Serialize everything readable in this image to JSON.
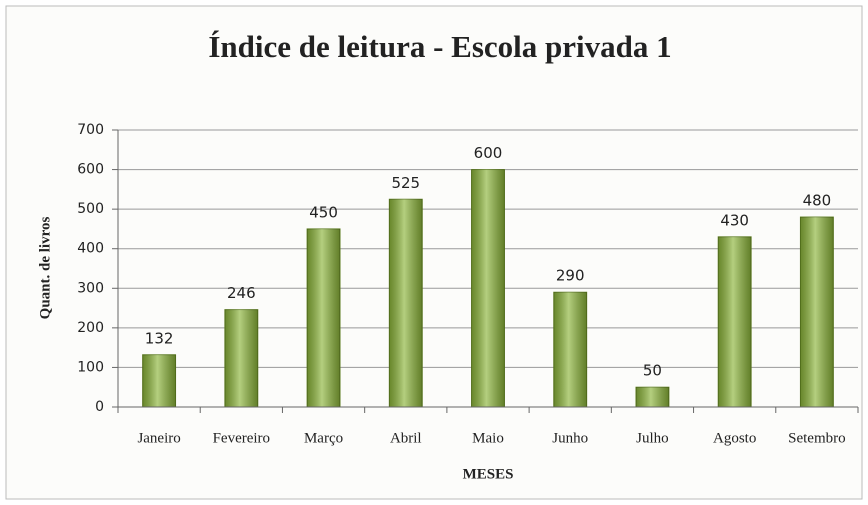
{
  "chart_data": {
    "type": "bar",
    "title": "Índice de leitura - Escola privada 1",
    "x_label": "MESES",
    "y_label": "Quant. de livros",
    "categories": [
      "Janeiro",
      "Fevereiro",
      "Março",
      "Abril",
      "Maio",
      "Junho",
      "Julho",
      "Agosto",
      "Setembro"
    ],
    "values": [
      132,
      246,
      450,
      525,
      600,
      290,
      50,
      430,
      480
    ],
    "color": "#8cb53a",
    "ylim": [
      0,
      700
    ],
    "yticks": [
      0,
      100,
      200,
      300,
      400,
      500,
      600,
      700
    ],
    "grid": true
  }
}
